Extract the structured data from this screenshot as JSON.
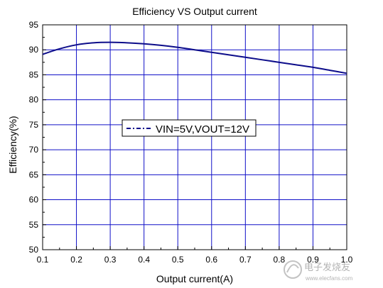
{
  "chart_data": {
    "type": "line",
    "title": "Efficiency VS Output current",
    "xlabel": "Output current(A)",
    "ylabel": "Efficiency(%)",
    "xlim": [
      0.1,
      1.0
    ],
    "ylim": [
      50,
      95
    ],
    "x_ticks": [
      "0.1",
      "0.2",
      "0.3",
      "0.4",
      "0.5",
      "0.6",
      "0.7",
      "0.8",
      "0.9",
      "1.0"
    ],
    "y_ticks": [
      "50",
      "55",
      "60",
      "65",
      "70",
      "75",
      "80",
      "85",
      "90",
      "95"
    ],
    "grid": true,
    "legend_position": "center-left",
    "series": [
      {
        "name": "VIN=5V,VOUT=12V",
        "color": "#0d0d8a",
        "x": [
          0.1,
          0.15,
          0.2,
          0.25,
          0.3,
          0.35,
          0.4,
          0.45,
          0.5,
          0.55,
          0.6,
          0.65,
          0.7,
          0.75,
          0.8,
          0.85,
          0.9,
          0.95,
          1.0
        ],
        "y": [
          89.1,
          90.2,
          91.0,
          91.4,
          91.5,
          91.4,
          91.2,
          90.9,
          90.5,
          90.0,
          89.5,
          89.0,
          88.5,
          88.0,
          87.5,
          87.0,
          86.5,
          85.9,
          85.3
        ]
      }
    ]
  },
  "watermark": {
    "text": "电子发烧友",
    "url": "www.elecfans.com"
  }
}
